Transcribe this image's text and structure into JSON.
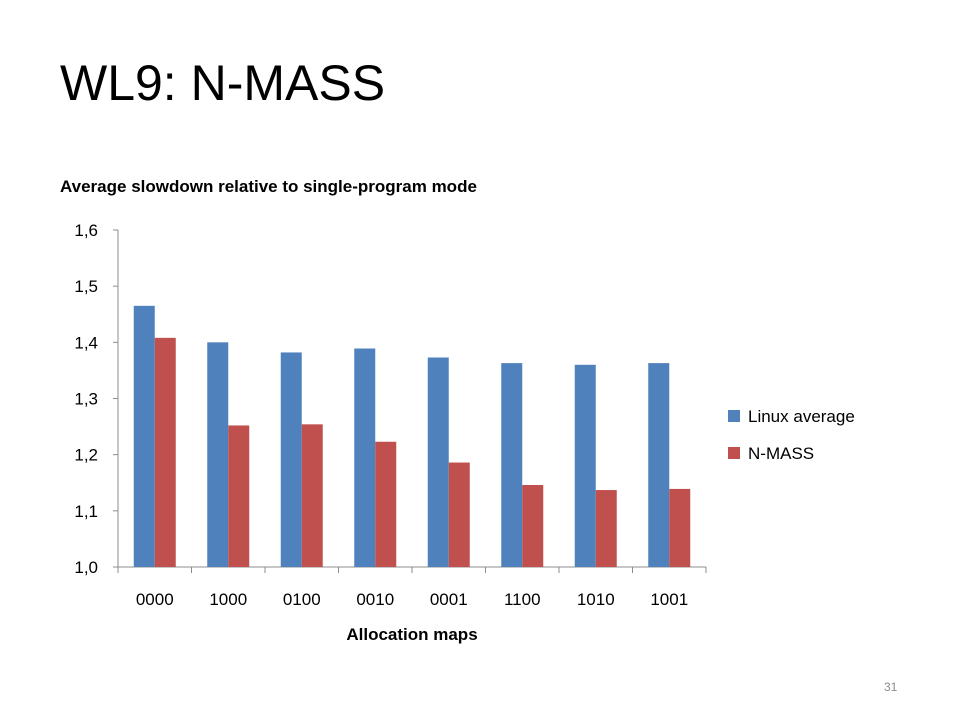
{
  "slide": {
    "title": "WL9: N-MASS",
    "page_number": "31"
  },
  "colors": {
    "linux": "#4f81bd",
    "nmass": "#c0504d",
    "axis": "#8c8c8c"
  },
  "chart_data": {
    "type": "bar",
    "title": "Average slowdown relative to single-program mode",
    "xlabel": "Allocation maps",
    "ylabel": "",
    "ylim": [
      1.0,
      1.6
    ],
    "yticks": [
      "1,0",
      "1,1",
      "1,2",
      "1,3",
      "1,4",
      "1,5",
      "1,6"
    ],
    "categories": [
      "0000",
      "1000",
      "0100",
      "0010",
      "0001",
      "1100",
      "1010",
      "1001"
    ],
    "series": [
      {
        "name": "Linux average",
        "color": "#4f81bd",
        "values": [
          1.465,
          1.4,
          1.382,
          1.389,
          1.373,
          1.363,
          1.36,
          1.363
        ]
      },
      {
        "name": "N-MASS",
        "color": "#c0504d",
        "values": [
          1.408,
          1.252,
          1.254,
          1.223,
          1.186,
          1.146,
          1.137,
          1.139
        ]
      }
    ],
    "legend_position": "right",
    "grid": false
  }
}
